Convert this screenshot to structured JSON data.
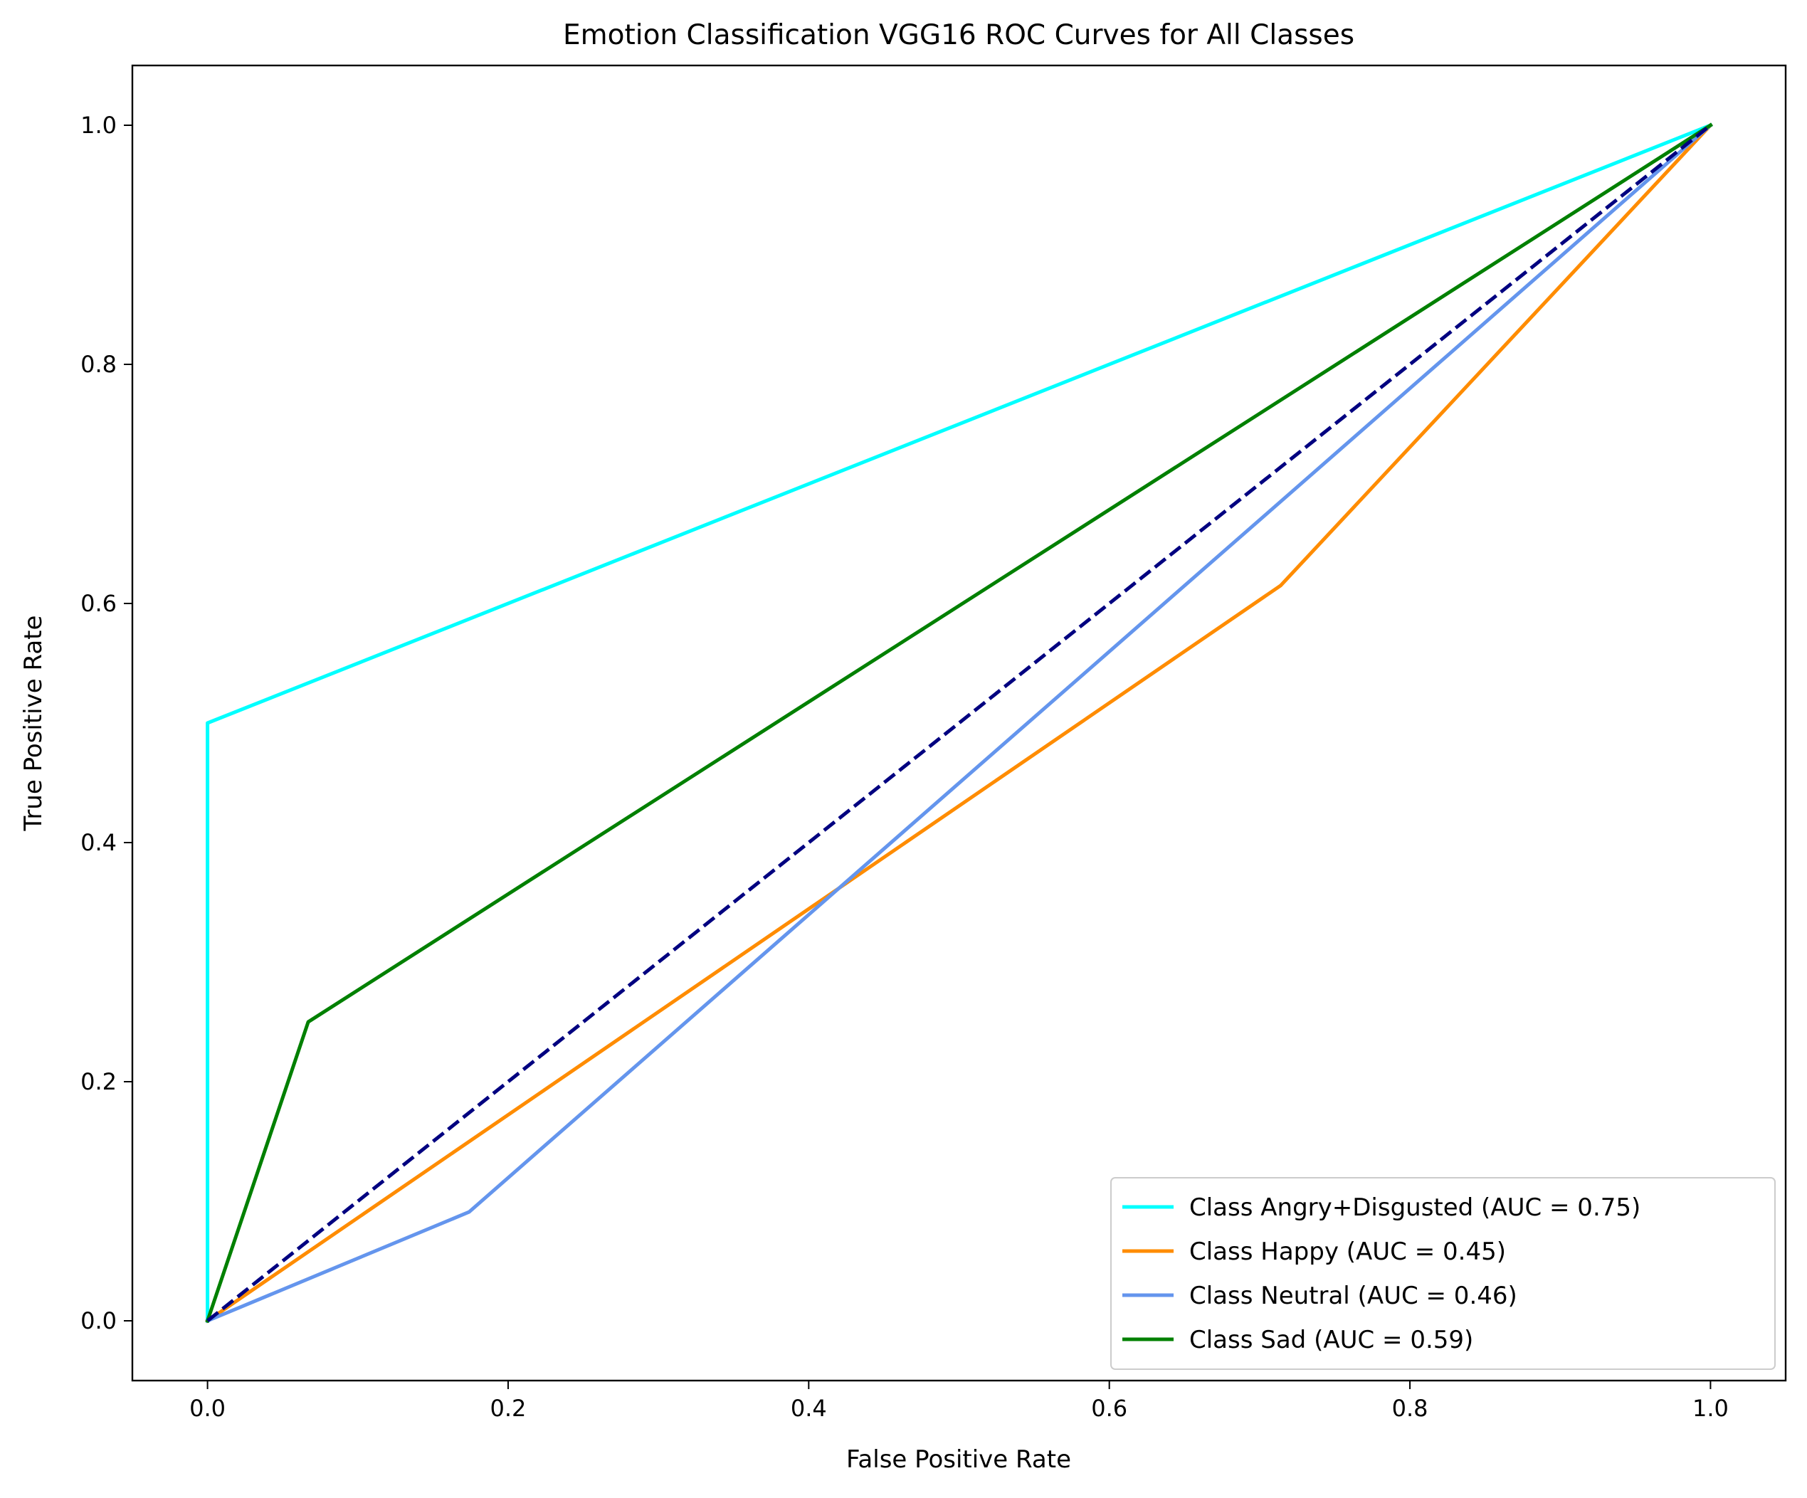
{
  "chart_data": {
    "type": "line",
    "title": "Emotion Classification VGG16 ROC Curves for All Classes",
    "xlabel": "False Positive Rate",
    "ylabel": "True Positive Rate",
    "xlim": [
      -0.05,
      1.05
    ],
    "ylim": [
      -0.05,
      1.05
    ],
    "xticks": [
      0.0,
      0.2,
      0.4,
      0.6,
      0.8,
      1.0
    ],
    "yticks": [
      0.0,
      0.2,
      0.4,
      0.6,
      0.8,
      1.0
    ],
    "xtick_labels": [
      "0.0",
      "0.2",
      "0.4",
      "0.6",
      "0.8",
      "1.0"
    ],
    "ytick_labels": [
      "0.0",
      "0.2",
      "0.4",
      "0.6",
      "0.8",
      "1.0"
    ],
    "grid": false,
    "legend_position": "lower-right",
    "series": [
      {
        "name": "Class Angry+Disgusted (AUC = 0.75)",
        "color": "#00ffff",
        "x": [
          0.0,
          0.0,
          1.0
        ],
        "y": [
          0.0,
          0.5,
          1.0
        ]
      },
      {
        "name": "Class Happy (AUC = 0.45)",
        "color": "#ff8c00",
        "x": [
          0.0,
          0.714,
          1.0
        ],
        "y": [
          0.0,
          0.615,
          1.0
        ]
      },
      {
        "name": "Class Neutral (AUC = 0.46)",
        "color": "#6495ed",
        "x": [
          0.0,
          0.174,
          1.0
        ],
        "y": [
          0.0,
          0.091,
          1.0
        ]
      },
      {
        "name": "Class Sad (AUC = 0.59)",
        "color": "#008000",
        "x": [
          0.0,
          0.067,
          1.0
        ],
        "y": [
          0.0,
          0.25,
          1.0
        ]
      }
    ],
    "reference_line": {
      "color": "#000080",
      "style": "dashed",
      "x": [
        0.0,
        1.0
      ],
      "y": [
        0.0,
        1.0
      ]
    }
  }
}
